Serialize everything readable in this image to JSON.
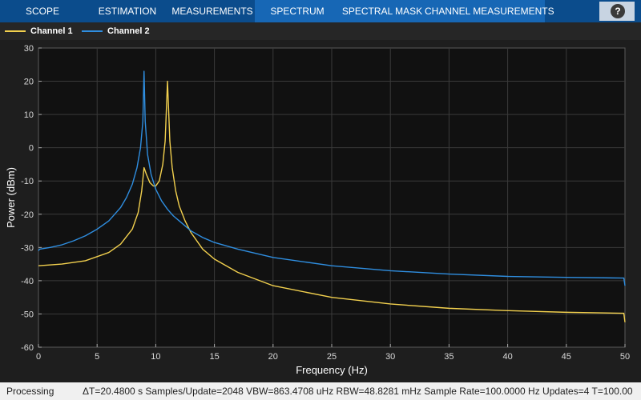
{
  "toolbar": {
    "tabs": [
      {
        "label": "SCOPE",
        "active": false
      },
      {
        "label": "ESTIMATION",
        "active": false
      },
      {
        "label": "MEASUREMENTS",
        "active": false
      },
      {
        "label": "SPECTRUM",
        "active": true
      },
      {
        "label": "SPECTRAL MASK",
        "active": false
      },
      {
        "label": "CHANNEL MEASUREMENTS",
        "active": false
      }
    ],
    "help_label": "?",
    "help_icon": "question-mark-icon",
    "colors": {
      "bar": "#0b4c8c",
      "active_tab": "#1767b5"
    }
  },
  "legend": {
    "items": [
      {
        "label": "Channel 1",
        "color": "#f2d04e"
      },
      {
        "label": "Channel 2",
        "color": "#2f8ee0"
      }
    ]
  },
  "status": {
    "state": "Processing",
    "details": "ΔT=20.4800 s  Samples/Update=2048  VBW=863.4708 uHz  RBW=48.8281 mHz  Sample Rate=100.0000 Hz  Updates=4  T=100.00"
  },
  "chart_data": {
    "type": "line",
    "xlabel": "Frequency (Hz)",
    "ylabel": "Power (dBm)",
    "xlim": [
      0,
      50
    ],
    "ylim": [
      -60,
      30
    ],
    "xticks": [
      "0",
      "5",
      "10",
      "15",
      "20",
      "25",
      "30",
      "35",
      "40",
      "45",
      "50"
    ],
    "yticks": [
      "30",
      "20",
      "10",
      "0",
      "-10",
      "-20",
      "-30",
      "-40",
      "-50",
      "-60"
    ],
    "grid": true,
    "legend_position": "top",
    "series": [
      {
        "name": "Channel 1",
        "color": "#f2d04e",
        "x": [
          0,
          2,
          4,
          6,
          7,
          8,
          8.5,
          8.8,
          9,
          9.2,
          9.5,
          9.8,
          10,
          10.3,
          10.6,
          10.8,
          11,
          11.2,
          11.4,
          11.7,
          12,
          12.5,
          13,
          14,
          15,
          17,
          20,
          25,
          30,
          35,
          40,
          45,
          49.9,
          50
        ],
        "y": [
          -35.5,
          -35,
          -34,
          -31.5,
          -29,
          -24.5,
          -19.5,
          -13,
          -6,
          -8,
          -10.5,
          -11.5,
          -11.5,
          -10,
          -5,
          2,
          20,
          2,
          -6,
          -13,
          -17.5,
          -22,
          -25.5,
          -30.5,
          -33.5,
          -37.5,
          -41.5,
          -45,
          -47,
          -48.3,
          -49,
          -49.5,
          -49.8,
          -52.5
        ]
      },
      {
        "name": "Channel 2",
        "color": "#2f8ee0",
        "x": [
          0,
          0.1,
          1,
          2,
          3,
          4,
          5,
          6,
          7,
          7.5,
          8,
          8.4,
          8.7,
          8.9,
          9,
          9.1,
          9.3,
          9.6,
          10,
          10.5,
          11,
          11.5,
          12,
          13,
          14,
          15,
          17,
          20,
          25,
          30,
          35,
          40,
          45,
          49.9,
          50
        ],
        "y": [
          -31,
          -30.5,
          -30,
          -29.2,
          -28,
          -26.5,
          -24.5,
          -22,
          -18,
          -15,
          -11,
          -6,
          0,
          8,
          23,
          8,
          -2,
          -8,
          -12.5,
          -16,
          -18.5,
          -20.5,
          -22,
          -25,
          -27,
          -28.5,
          -30.5,
          -33,
          -35.5,
          -37,
          -38,
          -38.7,
          -39,
          -39.2,
          -41.5
        ]
      }
    ]
  }
}
